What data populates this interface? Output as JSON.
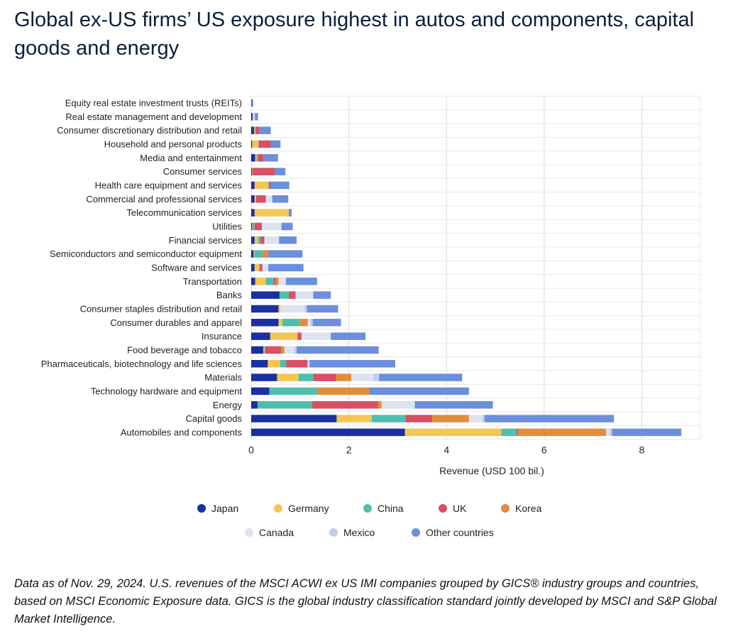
{
  "title": "Global ex-US firms’ US exposure highest in autos and components, capital goods and energy",
  "footnote": "Data as of Nov. 29, 2024. U.S. revenues of the MSCI ACWI ex US IMI companies grouped by GICS® industry groups and countries, based on MSCI Economic Exposure data. GICS is the global industry classification standard jointly developed by MSCI and S&P Global Market Intelligence.",
  "chart_data": {
    "type": "bar",
    "orientation": "horizontal",
    "stacked": true,
    "xlabel": "Revenue (USD 100 bil.)",
    "xlim": [
      0,
      9.2
    ],
    "xticks": [
      0,
      2,
      4,
      6,
      8
    ],
    "grid": "vertical",
    "legend_position": "bottom",
    "categories": [
      "Equity real estate investment trusts (REITs)",
      "Real estate management and development",
      "Consumer discretionary distribution and retail",
      "Household and personal products",
      "Media and entertainment",
      "Consumer services",
      "Health care equipment and services",
      "Commercial and professional services",
      "Telecommunication services",
      "Utilities",
      "Financial services",
      "Semiconductors and semiconductor equipment",
      "Software and services",
      "Transportation",
      "Banks",
      "Consumer staples distribution and retail",
      "Consumer durables and apparel",
      "Insurance",
      "Food beverage and tobacco",
      "Pharmaceuticals, biotechnology and life sciences",
      "Materials",
      "Technology hardware and equipment",
      "Energy",
      "Capital goods",
      "Automobiles and components"
    ],
    "series": [
      {
        "name": "Japan",
        "color": "#1a2fa0",
        "values": [
          0.01,
          0.03,
          0.06,
          0.02,
          0.08,
          0.02,
          0.07,
          0.07,
          0.07,
          0.02,
          0.07,
          0.05,
          0.07,
          0.08,
          0.58,
          0.56,
          0.56,
          0.39,
          0.25,
          0.34,
          0.53,
          0.37,
          0.13,
          1.75,
          3.15
        ]
      },
      {
        "name": "Germany",
        "color": "#f4c653",
        "values": [
          0.0,
          0.0,
          0.02,
          0.13,
          0.03,
          0.01,
          0.28,
          0.03,
          0.7,
          0.01,
          0.07,
          0.02,
          0.09,
          0.22,
          0.0,
          0.04,
          0.08,
          0.56,
          0.02,
          0.25,
          0.44,
          0.0,
          0.0,
          0.72,
          1.97
        ]
      },
      {
        "name": "China",
        "color": "#4fbfad",
        "values": [
          0.0,
          0.0,
          0.01,
          0.0,
          0.03,
          0.0,
          0.02,
          0.0,
          0.0,
          0.04,
          0.05,
          0.16,
          0.02,
          0.16,
          0.19,
          0.0,
          0.36,
          0.0,
          0.02,
          0.13,
          0.3,
          0.98,
          1.12,
          0.69,
          0.32
        ]
      },
      {
        "name": "UK",
        "color": "#d94f63",
        "values": [
          0.0,
          0.0,
          0.08,
          0.25,
          0.11,
          0.45,
          0.03,
          0.2,
          0.0,
          0.15,
          0.08,
          0.0,
          0.05,
          0.04,
          0.14,
          0.0,
          0.0,
          0.08,
          0.32,
          0.43,
          0.47,
          0.0,
          1.35,
          0.55,
          0.03
        ]
      },
      {
        "name": "Korea",
        "color": "#e38c3b",
        "values": [
          0.0,
          0.0,
          0.0,
          0.0,
          0.0,
          0.0,
          0.0,
          0.0,
          0.0,
          0.0,
          0.0,
          0.12,
          0.0,
          0.06,
          0.0,
          0.0,
          0.16,
          0.0,
          0.07,
          0.0,
          0.31,
          1.07,
          0.07,
          0.75,
          1.8
        ]
      },
      {
        "name": "Canada",
        "color": "#dde3ee",
        "values": [
          0.0,
          0.02,
          0.0,
          0.0,
          0.0,
          0.0,
          0.0,
          0.13,
          0.0,
          0.4,
          0.3,
          0.0,
          0.12,
          0.15,
          0.36,
          0.49,
          0.05,
          0.6,
          0.2,
          0.0,
          0.45,
          0.0,
          0.68,
          0.27,
          0.07
        ]
      },
      {
        "name": "Mexico",
        "color": "#c4cde8",
        "values": [
          0.0,
          0.03,
          0.0,
          0.0,
          0.0,
          0.0,
          0.0,
          0.0,
          0.0,
          0.0,
          0.0,
          0.0,
          0.0,
          0.0,
          0.0,
          0.05,
          0.05,
          0.0,
          0.05,
          0.05,
          0.12,
          0.0,
          0.0,
          0.05,
          0.05
        ]
      },
      {
        "name": "Other countries",
        "color": "#6b8fdc",
        "values": [
          0.03,
          0.06,
          0.23,
          0.2,
          0.3,
          0.22,
          0.38,
          0.33,
          0.06,
          0.23,
          0.36,
          0.7,
          0.72,
          0.64,
          0.36,
          0.64,
          0.58,
          0.71,
          1.68,
          1.75,
          1.7,
          2.04,
          1.6,
          2.65,
          1.42
        ]
      }
    ]
  }
}
